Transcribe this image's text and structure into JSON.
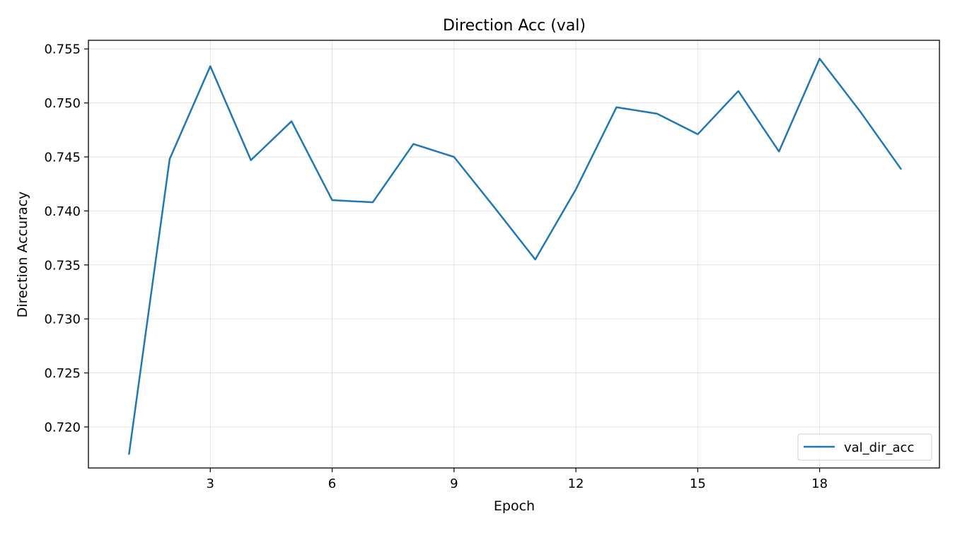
{
  "chart_data": {
    "type": "line",
    "title": "Direction Acc (val)",
    "xlabel": "Epoch",
    "ylabel": "Direction Accuracy",
    "xlim": [
      0.0,
      20.95
    ],
    "ylim": [
      0.7162,
      0.7558
    ],
    "xticks": [
      3,
      6,
      9,
      12,
      15,
      18
    ],
    "yticks": [
      0.72,
      0.725,
      0.73,
      0.735,
      0.74,
      0.745,
      0.75,
      0.755
    ],
    "ytick_format_decimals": 3,
    "grid": true,
    "legend_position": "bottom-right",
    "series": [
      {
        "name": "val_dir_acc",
        "color": "#1f77b4",
        "x": [
          1,
          2,
          3,
          4,
          5,
          6,
          7,
          8,
          9,
          10,
          11,
          12,
          13,
          14,
          15,
          16,
          17,
          18,
          19,
          20
        ],
        "y": [
          0.7175,
          0.7448,
          0.7534,
          0.7447,
          0.7483,
          0.741,
          0.7408,
          0.7462,
          0.745,
          0.7403,
          0.7355,
          0.742,
          0.7496,
          0.749,
          0.7471,
          0.7511,
          0.7455,
          0.7541,
          0.7492,
          0.7439
        ]
      }
    ]
  }
}
